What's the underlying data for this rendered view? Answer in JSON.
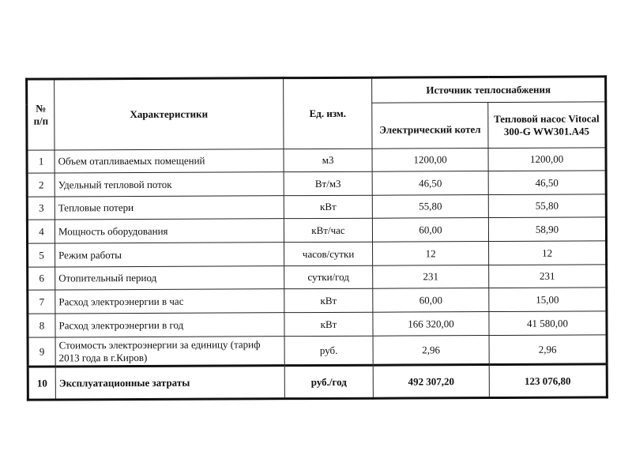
{
  "header": {
    "num": "№ п/п",
    "characteristics": "Характеристики",
    "unit": "Ед. изм.",
    "source": "Источник теплоснабжения",
    "col_boiler": "Электрический котел",
    "col_pump": "Тепловой насос Vitocal 300-G WW301.A45"
  },
  "rows": [
    {
      "n": "1",
      "name": "Объем отапливаемых помещений",
      "unit": "м3",
      "boiler": "1200,00",
      "pump": "1200,00"
    },
    {
      "n": "2",
      "name": "Удельный тепловой поток",
      "unit": "Вт/м3",
      "boiler": "46,50",
      "pump": "46,50"
    },
    {
      "n": "3",
      "name": "Тепловые потери",
      "unit": "кВт",
      "boiler": "55,80",
      "pump": "55,80"
    },
    {
      "n": "4",
      "name": "Мощность оборудования",
      "unit": "кВт/час",
      "boiler": "60,00",
      "pump": "58,90"
    },
    {
      "n": "5",
      "name": "Режим работы",
      "unit": "часов/сутки",
      "boiler": "12",
      "pump": "12"
    },
    {
      "n": "6",
      "name": "Отопительный период",
      "unit": "сутки/год",
      "boiler": "231",
      "pump": "231"
    },
    {
      "n": "7",
      "name": "Расход электроэнергии в час",
      "unit": "кВт",
      "boiler": "60,00",
      "pump": "15,00"
    },
    {
      "n": "8",
      "name": "Расход электроэнергии в год",
      "unit": "кВт",
      "boiler": "166 320,00",
      "pump": "41 580,00"
    },
    {
      "n": "9",
      "name": "Стоимость электроэнергии за единицу (тариф 2013 года в г.Киров)",
      "unit": "руб.",
      "boiler": "2,96",
      "pump": "2,96"
    },
    {
      "n": "10",
      "name": "Эксплуатационные затраты",
      "unit": "руб./год",
      "boiler": "492 307,20",
      "pump": "123 076,80"
    }
  ]
}
